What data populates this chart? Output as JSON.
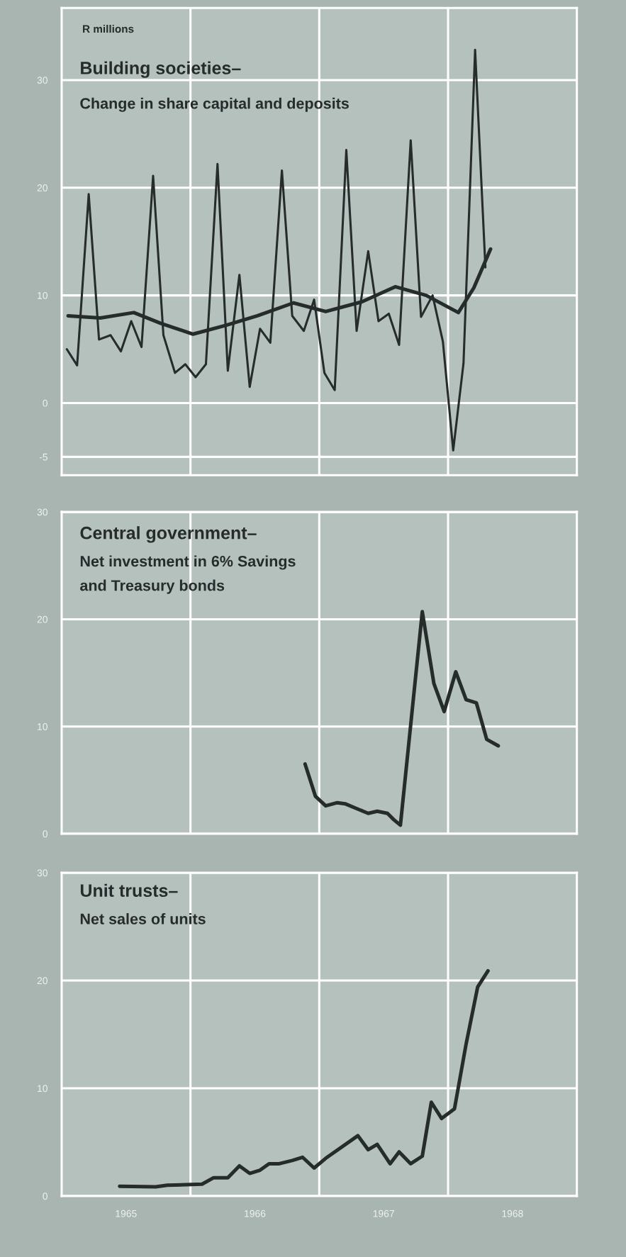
{
  "chart_data": [
    {
      "type": "line",
      "title": "Building societies–",
      "subtitle": "Change in share capital and deposits",
      "ylabel": "R millions",
      "xlim": [
        1965,
        1969
      ],
      "ylim": [
        -6.7,
        36.7
      ],
      "yticks": [
        -5,
        0,
        10,
        20,
        30
      ],
      "tick_labels": "y",
      "grid": "y",
      "ref_lines": [
        {
          "axis": "x",
          "value": 1966,
          "color": "#ffffff"
        },
        {
          "axis": "x",
          "value": 1967,
          "color": "#ffffff"
        },
        {
          "axis": "x",
          "value": 1968,
          "color": "#ffffff"
        }
      ],
      "series": [
        {
          "color": "#262b2c",
          "x": [
            1965.04,
            1965.12,
            1965.21,
            1965.29,
            1965.38,
            1965.46,
            1965.54,
            1965.62,
            1965.71,
            1965.79,
            1965.88,
            1965.96,
            1966.04,
            1966.12,
            1966.21,
            1966.29,
            1966.38,
            1966.46,
            1966.54,
            1966.62,
            1966.71,
            1966.79,
            1966.88,
            1966.96,
            1967.04,
            1967.12,
            1967.21,
            1967.29,
            1967.38,
            1967.46,
            1967.54,
            1967.62,
            1967.71,
            1967.79,
            1967.88,
            1967.96,
            1968.04,
            1968.12,
            1968.21,
            1968.29
          ],
          "values": [
            5.0,
            3.5,
            19.4,
            5.9,
            6.3,
            4.8,
            7.6,
            5.2,
            21.1,
            6.3,
            2.8,
            3.6,
            2.4,
            3.6,
            22.2,
            3.0,
            11.9,
            1.5,
            6.9,
            5.6,
            21.6,
            8.1,
            6.7,
            9.6,
            2.8,
            1.2,
            23.5,
            6.7,
            14.1,
            7.6,
            8.3,
            5.4,
            24.4,
            8.0,
            10.0,
            5.7,
            -4.4,
            3.7,
            32.8,
            12.6
          ]
        },
        {
          "color": "#262b2c",
          "x": [
            1965.05,
            1965.3,
            1965.56,
            1965.77,
            1966.02,
            1966.27,
            1966.52,
            1966.8,
            1967.05,
            1967.33,
            1967.59,
            1967.83,
            1968.08,
            1968.2,
            1968.33
          ],
          "values": [
            8.1,
            7.9,
            8.4,
            7.4,
            6.4,
            7.2,
            8.1,
            9.3,
            8.5,
            9.4,
            10.8,
            10.0,
            8.4,
            10.7,
            14.3
          ]
        }
      ]
    },
    {
      "type": "line",
      "title": "Central government–",
      "subtitle": "Net investment in 6% Savings\nand Treasury bonds",
      "xlim": [
        1965,
        1969
      ],
      "ylim": [
        0,
        30
      ],
      "yticks": [
        0,
        10,
        20,
        30
      ],
      "tick_labels": "y",
      "grid": "y",
      "ref_lines": [
        {
          "axis": "x",
          "value": 1966,
          "color": "#ffffff"
        },
        {
          "axis": "x",
          "value": 1967,
          "color": "#ffffff"
        },
        {
          "axis": "x",
          "value": 1968,
          "color": "#ffffff"
        }
      ],
      "series": [
        {
          "color": "#262b2c",
          "x": [
            1966.89,
            1966.97,
            1967.05,
            1967.14,
            1967.2,
            1967.3,
            1967.38,
            1967.45,
            1967.53,
            1967.58,
            1967.63,
            1967.8,
            1967.89,
            1967.97,
            1968.06,
            1968.14,
            1968.22,
            1968.3,
            1968.39
          ],
          "values": [
            6.5,
            3.5,
            2.6,
            2.9,
            2.8,
            2.3,
            1.9,
            2.1,
            1.9,
            1.3,
            0.8,
            20.7,
            14.0,
            11.4,
            15.1,
            12.5,
            12.2,
            8.8,
            8.2
          ]
        }
      ]
    },
    {
      "type": "line",
      "title": "Unit trusts–",
      "subtitle": "Net sales of units",
      "xlim": [
        1965,
        1969
      ],
      "ylim": [
        0,
        30
      ],
      "yticks": [
        0,
        10,
        20,
        30
      ],
      "xticks": [
        {
          "value": 1965.5,
          "label": "1965"
        },
        {
          "value": 1966.5,
          "label": "1966"
        },
        {
          "value": 1967.5,
          "label": "1967"
        },
        {
          "value": 1968.5,
          "label": "1968"
        }
      ],
      "grid": "y",
      "ref_lines": [
        {
          "axis": "x",
          "value": 1966,
          "color": "#ffffff"
        },
        {
          "axis": "x",
          "value": 1967,
          "color": "#ffffff"
        },
        {
          "axis": "x",
          "value": 1968,
          "color": "#ffffff"
        }
      ],
      "series": [
        {
          "color": "#262b2c",
          "x": [
            1965.45,
            1965.73,
            1965.82,
            1966.09,
            1966.18,
            1966.29,
            1966.38,
            1966.46,
            1966.54,
            1966.61,
            1966.69,
            1966.79,
            1966.87,
            1966.96,
            1967.05,
            1967.3,
            1967.38,
            1967.45,
            1967.55,
            1967.62,
            1967.71,
            1967.8,
            1967.87,
            1967.95,
            1968.05,
            1968.14,
            1968.23,
            1968.31
          ],
          "values": [
            0.9,
            0.85,
            1.0,
            1.1,
            1.7,
            1.7,
            2.8,
            2.1,
            2.4,
            3.0,
            3.0,
            3.3,
            3.6,
            2.6,
            3.5,
            5.6,
            4.3,
            4.8,
            3.0,
            4.1,
            3.0,
            3.7,
            8.7,
            7.2,
            8.1,
            14.1,
            19.4,
            20.9
          ]
        }
      ]
    }
  ]
}
